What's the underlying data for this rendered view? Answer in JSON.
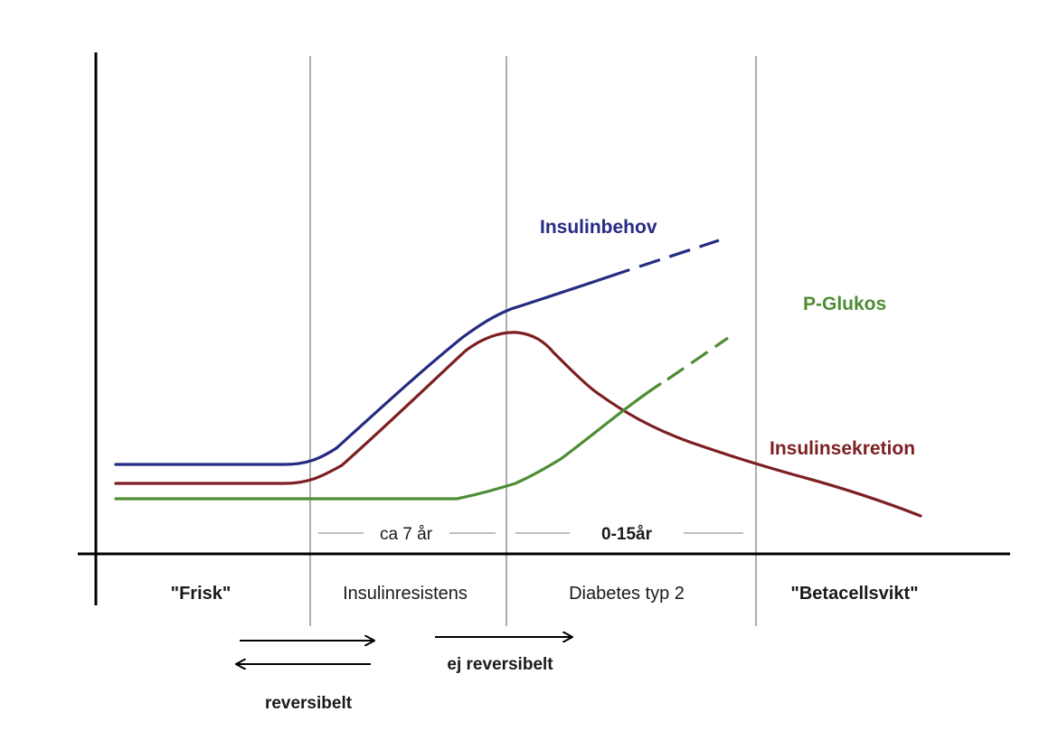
{
  "colors": {
    "insulinbehov": "#262b82",
    "insulinsekretion": "#7d1f22",
    "p_glukos": "#4d8d34",
    "axis": "#000000",
    "divider": "#9a9a9a"
  },
  "series_labels": {
    "insulinbehov": "Insulinbehov",
    "p_glukos": "P-Glukos",
    "insulinsekretion": "Insulinsekretion"
  },
  "phases": {
    "frisk": "\"Frisk\"",
    "insulinresistens": "Insulinresistens",
    "diabetes": "Diabetes typ 2",
    "betacellsvikt": "\"Betacellsvikt\""
  },
  "durations": {
    "ca7": "ca 7 år",
    "zero15": "0-15år"
  },
  "reversibility": {
    "reversibel": "reversibelt",
    "ej_reversibel": "ej reversibelt"
  }
}
